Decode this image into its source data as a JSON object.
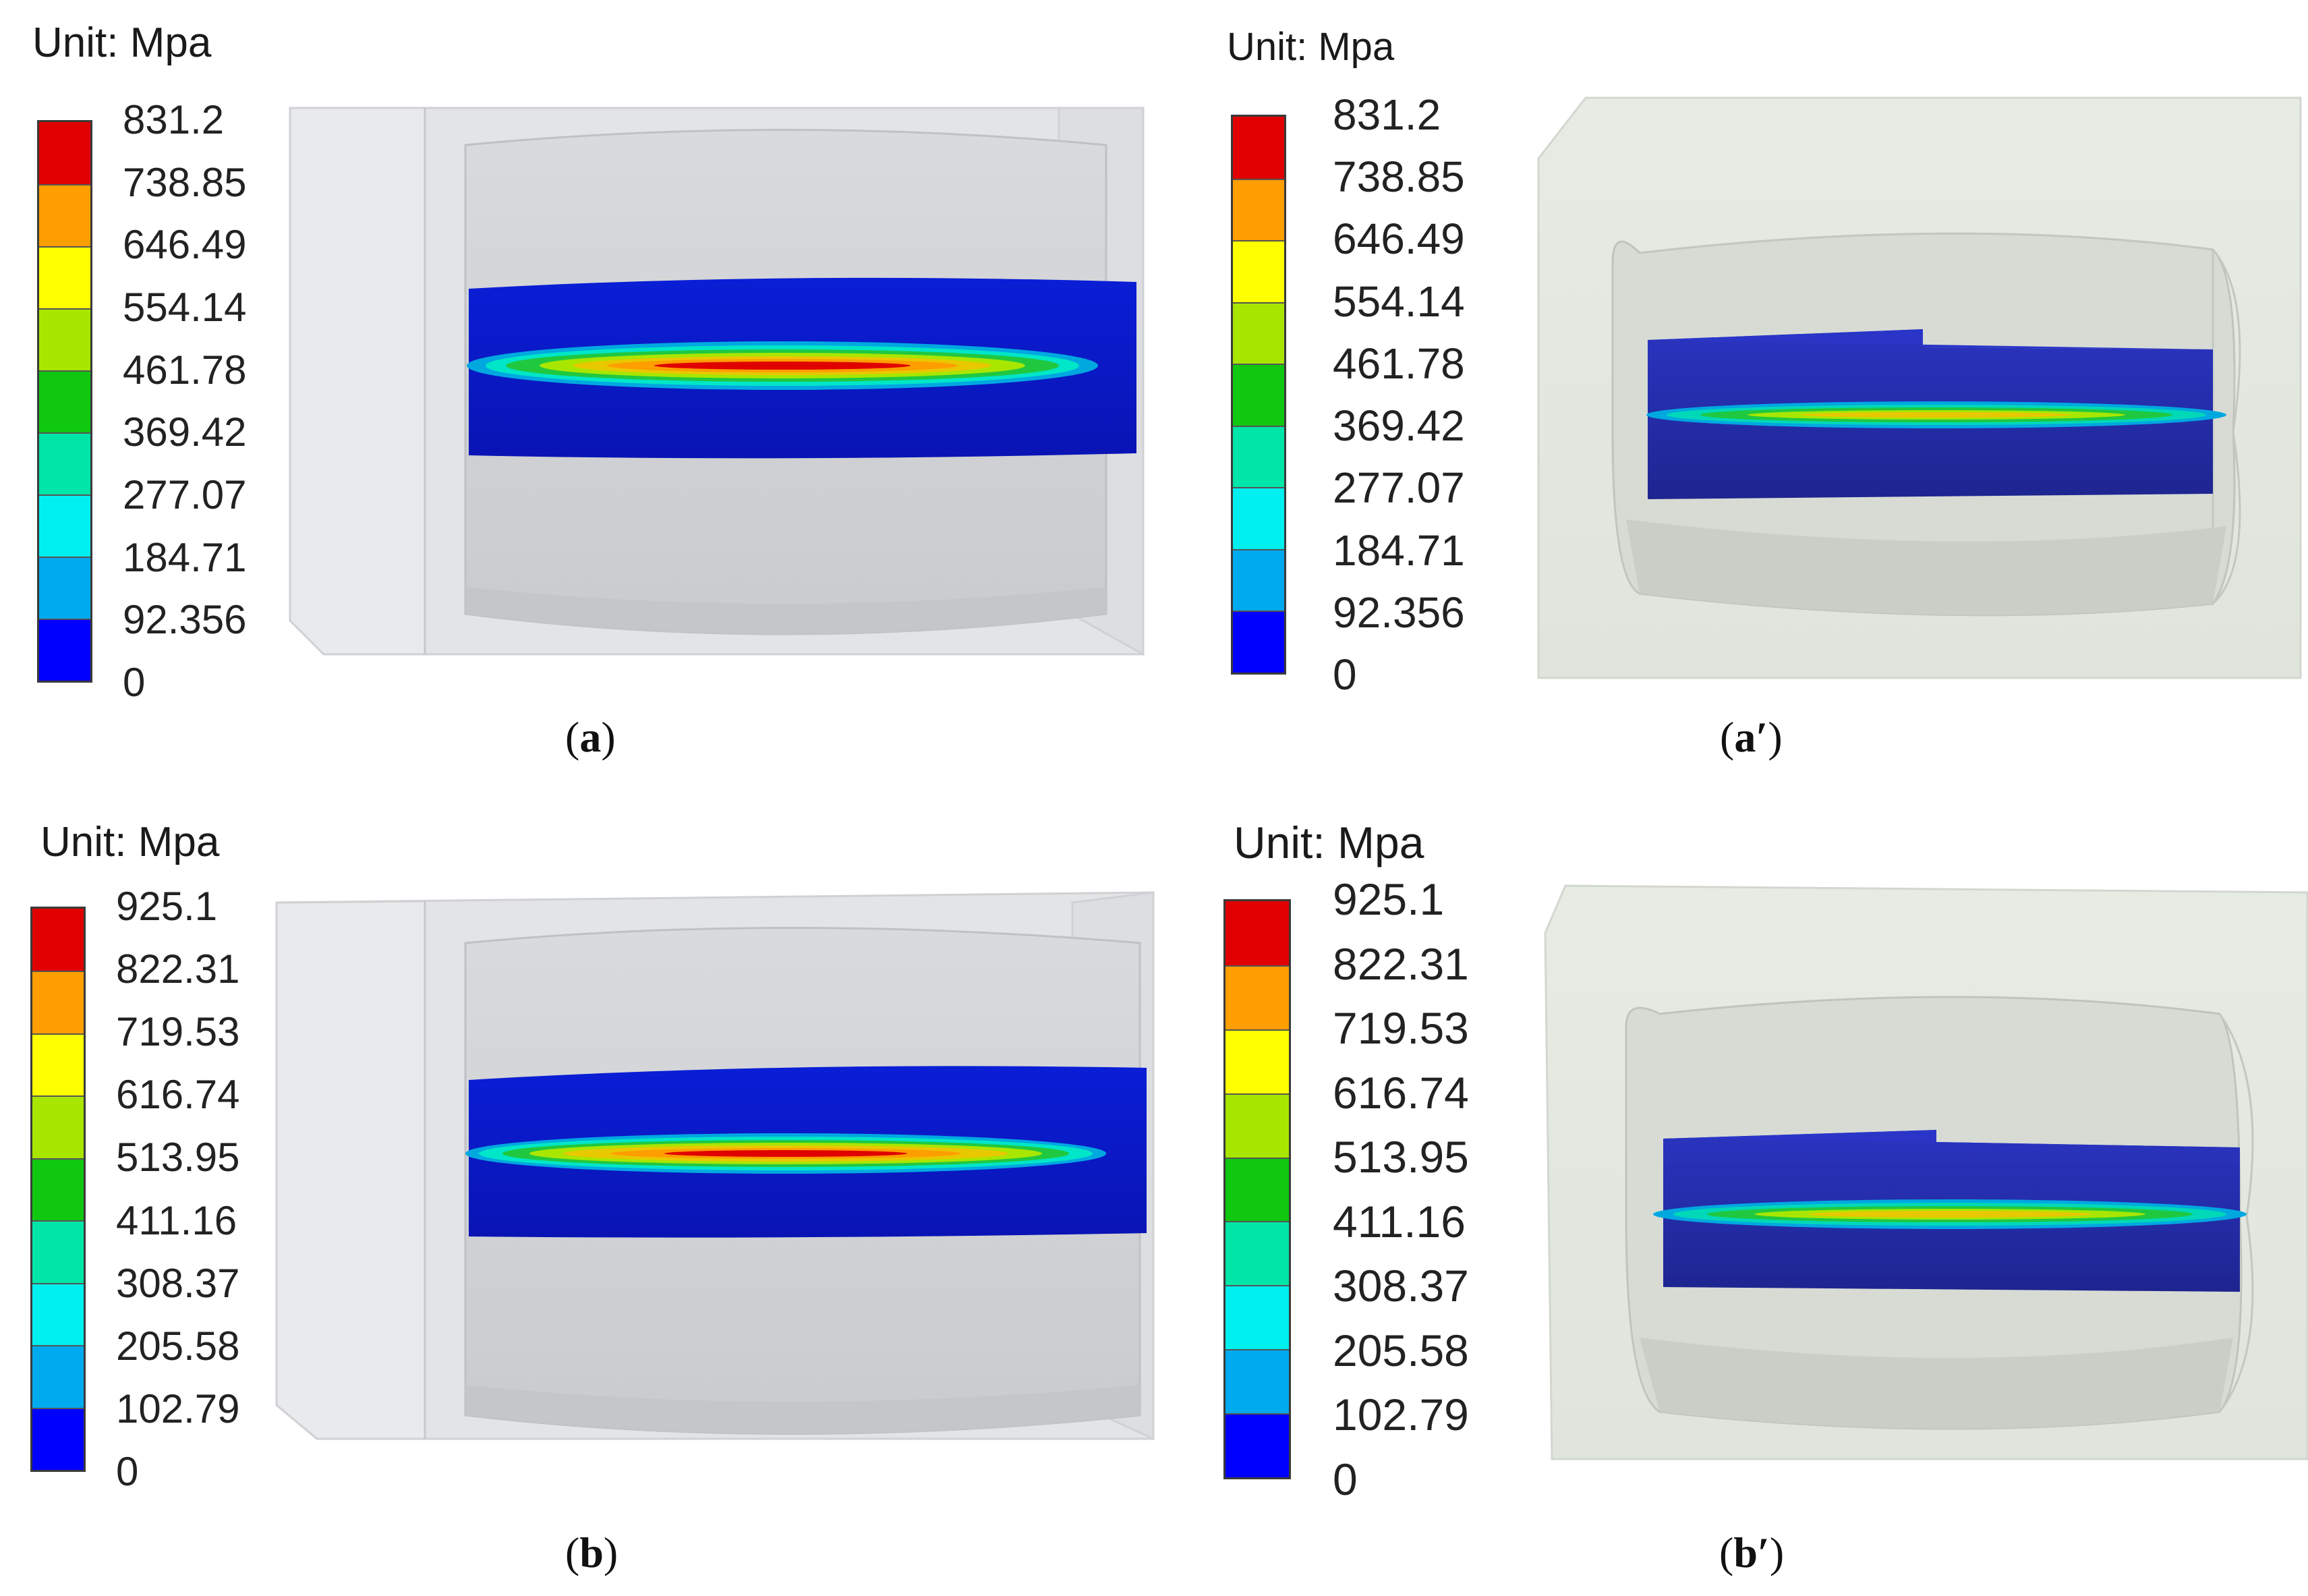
{
  "colors": [
    "#e00000",
    "#ff9e00",
    "#ffff00",
    "#a8e600",
    "#10c810",
    "#00e6a8",
    "#00f0f0",
    "#00aaee",
    "#0000ff"
  ],
  "panels": [
    {
      "unit_label": "Unit: Mpa",
      "ticks": [
        "831.2",
        "738.85",
        "646.49",
        "554.14",
        "461.78",
        "369.42",
        "277.07",
        "184.71",
        "92.356",
        "0"
      ],
      "caption_open": "(",
      "caption_letter": "a",
      "caption_close": ")"
    },
    {
      "unit_label": "Unit: Mpa",
      "ticks": [
        "831.2",
        "738.85",
        "646.49",
        "554.14",
        "461.78",
        "369.42",
        "277.07",
        "184.71",
        "92.356",
        "0"
      ],
      "caption_open": "(",
      "caption_letter": "a′",
      "caption_close": ")"
    },
    {
      "unit_label": "Unit: Mpa",
      "ticks": [
        "925.1",
        "822.31",
        "719.53",
        "616.74",
        "513.95",
        "411.16",
        "308.37",
        "205.58",
        "102.79",
        "0"
      ],
      "caption_open": "(",
      "caption_letter": "b",
      "caption_close": ")"
    },
    {
      "unit_label": "Unit: Mpa",
      "ticks": [
        "925.1",
        "822.31",
        "719.53",
        "616.74",
        "513.95",
        "411.16",
        "308.37",
        "205.58",
        "102.79",
        "0"
      ],
      "caption_open": "(",
      "caption_letter": "b′",
      "caption_close": ")"
    }
  ]
}
